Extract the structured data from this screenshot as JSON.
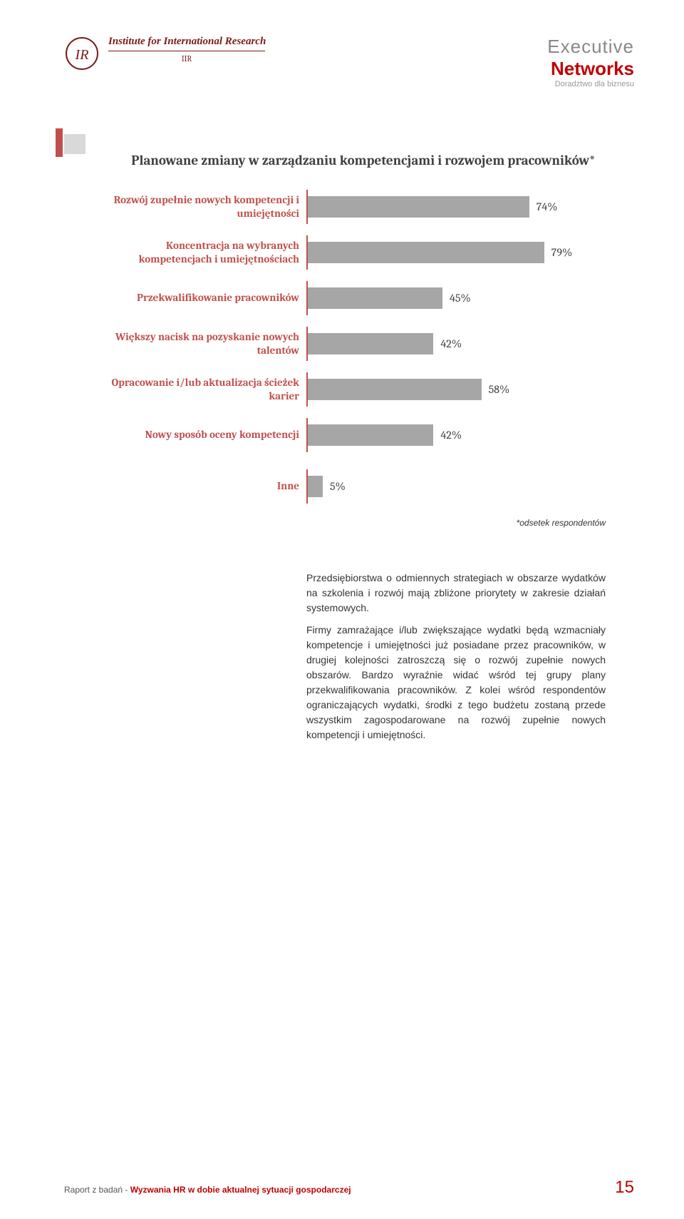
{
  "header": {
    "left": {
      "title": "Institute for International Research",
      "sub": "IIR"
    },
    "right": {
      "line1": "Executive",
      "line2": "Networks",
      "tag": "Doradztwo dla biznesu"
    }
  },
  "chart": {
    "type": "bar",
    "title": "Planowane zmiany w zarządzaniu kompetencjami i rozwojem pracowników*",
    "bar_color": "#a6a6a6",
    "axis_color": "#c0504d",
    "label_color": "#c0504d",
    "value_color": "#404040",
    "max_value": 100,
    "bar_area_width": 420,
    "items": [
      {
        "label": "Rozwój zupełnie nowych kompetencji i umiejętności",
        "value": 74,
        "display": "74%"
      },
      {
        "label": "Koncentracja na wybranych kompetencjach i umiejętnościach",
        "value": 79,
        "display": "79%"
      },
      {
        "label": "Przekwalifikowanie pracowników",
        "value": 45,
        "display": "45%"
      },
      {
        "label": "Większy nacisk na pozyskanie nowych talentów",
        "value": 42,
        "display": "42%"
      },
      {
        "label": "Opracowanie i/lub aktualizacja ścieżek karier",
        "value": 58,
        "display": "58%"
      },
      {
        "label": "Nowy sposób oceny kompetencji",
        "value": 42,
        "display": "42%"
      },
      {
        "label": "Inne",
        "value": 5,
        "display": "5%"
      }
    ]
  },
  "footnote": "*odsetek respondentów",
  "body": {
    "p1": "Przedsiębiorstwa o odmiennych strategiach w obszarze wydatków na szkolenia i rozwój mają zbliżone priorytety w zakresie działań systemowych.",
    "p2": "Firmy zamrażające i/lub zwiększające wydatki będą wzmacniały kompetencje i umiejętności już posiadane przez pracowników, w drugiej kolejności zatroszczą się o rozwój zupełnie nowych obszarów. Bardzo wyraźnie widać wśród tej grupy plany przekwalifikowania pracowników. Z kolei wśród respondentów ograniczających wydatki, środki z tego budżetu zostaną przede wszystkim zagospodarowane na rozwój zupełnie nowych kompetencji i umiejętności."
  },
  "footer": {
    "prefix": "Raport z badań - ",
    "title": "Wyzwania HR w dobie aktualnej sytuacji gospodarczej",
    "page": "15"
  }
}
